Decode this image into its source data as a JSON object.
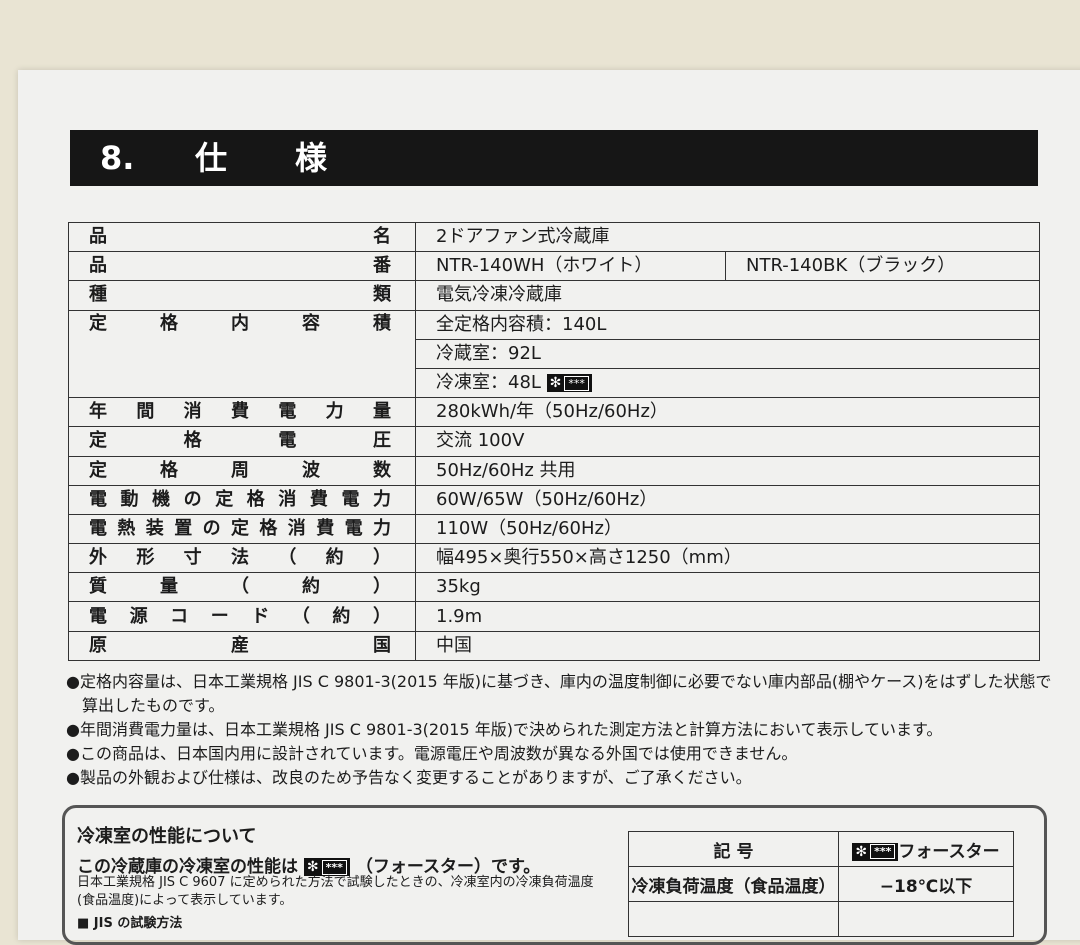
{
  "section": {
    "number": "8.",
    "title": "仕様"
  },
  "spec": [
    {
      "label": "品名",
      "value": "2ドアファン式冷蔵庫"
    },
    {
      "label": "品番",
      "value": "NTR-140WH（ホワイト）",
      "value2": "NTR-140BK（ブラック）"
    },
    {
      "label": "種類",
      "value": "電気冷凍冷蔵庫"
    },
    {
      "label": "定格内容積",
      "value": "全定格内容積：140L",
      "value_b": "冷蔵室：92L",
      "value_c": "冷凍室：48L"
    },
    {
      "label": "年間消費電力量",
      "value": "280kWh/年（50Hz/60Hz）"
    },
    {
      "label": "定格電圧",
      "value": "交流 100V"
    },
    {
      "label": "定格周波数",
      "value": "50Hz/60Hz 共用"
    },
    {
      "label": "電動機の定格消費電力",
      "value": "60W/65W（50Hz/60Hz）"
    },
    {
      "label": "電熱装置の定格消費電力",
      "value": "110W（50Hz/60Hz）"
    },
    {
      "label": "外形寸法（約）",
      "value": "幅495×奥行550×高さ1250（mm）"
    },
    {
      "label": "質量（約）",
      "value": "35kg"
    },
    {
      "label": "電源コード（約）",
      "value": "1.9m"
    },
    {
      "label": "原産国",
      "value": "中国"
    }
  ],
  "freezer_symbol": {
    "snow": "✻",
    "stars": "***"
  },
  "notes": [
    "●定格内容量は、日本工業規格 JIS C 9801-3(2015 年版)に基づき、庫内の温度制御に必要でない庫内部品(棚やケース)をはずした状態で算出したものです。",
    "●年間消費電力量は、日本工業規格 JIS C 9801-3(2015 年版)で決められた測定方法と計算方法において表示しています。",
    "●この商品は、日本国内用に設計されています。電源電圧や周波数が異なる外国では使用できません。",
    "●製品の外観および仕様は、改良のため予告なく変更することがありますが、ご了承ください。"
  ],
  "freezer_box": {
    "title": "冷凍室の性能について",
    "line_pre": "この冷蔵庫の冷凍室の性能は",
    "line_post": "（フォースター）です。",
    "desc": "日本工業規格 JIS C 9607 に定められた方法で試験したときの、冷凍室内の冷凍負荷温度(食品温度)によって表示しています。",
    "sub": "■ JIS の試験方法",
    "table": {
      "h1": "記 号",
      "h2": "フォースター",
      "r1": "冷凍負荷温度（食品温度）",
      "r1v": "−18℃以下"
    }
  }
}
